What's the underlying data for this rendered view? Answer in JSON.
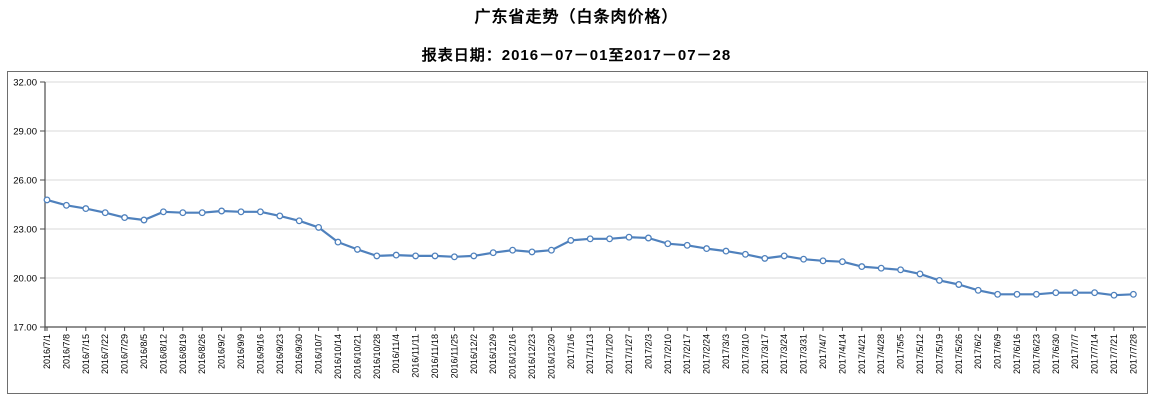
{
  "header": {
    "title": "广东省走势（白条肉价格）",
    "subtitle": "报表日期：2016－07－01至2017－07－28"
  },
  "chart_data": {
    "type": "line",
    "title": "广东省走势（白条肉价格）",
    "subtitle": "报表日期：2016－07－01至2017－07－28",
    "xlabel": "",
    "ylabel": "",
    "ylim": [
      17,
      32
    ],
    "y_tick_labels": [
      "17.00",
      "20.00",
      "23.00",
      "26.00",
      "29.00",
      "32.00"
    ],
    "grid": "horizontal",
    "legend": "none",
    "marker": "hollow-circle",
    "colors": {
      "line": "#4f81bd",
      "marker_fill": "#ffffff",
      "grid": "#dadada",
      "axis": "#4d4d4d",
      "label": "#000000",
      "border": "#6e6e6e"
    },
    "categories": [
      "2016/7/1",
      "2016/7/8",
      "2016/7/15",
      "2016/7/22",
      "2016/7/29",
      "2016/8/5",
      "2016/8/12",
      "2016/8/19",
      "2016/8/26",
      "2016/9/2",
      "2016/9/9",
      "2016/9/16",
      "2016/9/23",
      "2016/9/30",
      "2016/10/7",
      "2016/10/14",
      "2016/10/21",
      "2016/10/28",
      "2016/11/4",
      "2016/11/11",
      "2016/11/18",
      "2016/11/25",
      "2016/12/2",
      "2016/12/9",
      "2016/12/16",
      "2016/12/23",
      "2016/12/30",
      "2017/1/6",
      "2017/1/13",
      "2017/1/20",
      "2017/1/27",
      "2017/2/3",
      "2017/2/10",
      "2017/2/17",
      "2017/2/24",
      "2017/3/3",
      "2017/3/10",
      "2017/3/17",
      "2017/3/24",
      "2017/3/31",
      "2017/4/7",
      "2017/4/14",
      "2017/4/21",
      "2017/4/28",
      "2017/5/5",
      "2017/5/12",
      "2017/5/19",
      "2017/5/26",
      "2017/6/2",
      "2017/6/9",
      "2017/6/16",
      "2017/6/23",
      "2017/6/30",
      "2017/7/7",
      "2017/7/14",
      "2017/7/21",
      "2017/7/28"
    ],
    "values": [
      24.78,
      24.45,
      24.25,
      24.0,
      23.7,
      23.55,
      24.05,
      24.0,
      24.0,
      24.1,
      24.05,
      24.05,
      23.8,
      23.5,
      23.1,
      22.2,
      21.75,
      21.35,
      21.4,
      21.35,
      21.35,
      21.3,
      21.35,
      21.55,
      21.7,
      21.6,
      21.7,
      22.3,
      22.4,
      22.4,
      22.5,
      22.45,
      22.1,
      22.0,
      21.8,
      21.65,
      21.45,
      21.2,
      21.35,
      21.15,
      21.05,
      21.0,
      20.7,
      20.6,
      20.5,
      20.25,
      19.85,
      19.6,
      19.25,
      19.0,
      19.0,
      19.0,
      19.1,
      19.1,
      19.1,
      18.95,
      19.0
    ]
  }
}
